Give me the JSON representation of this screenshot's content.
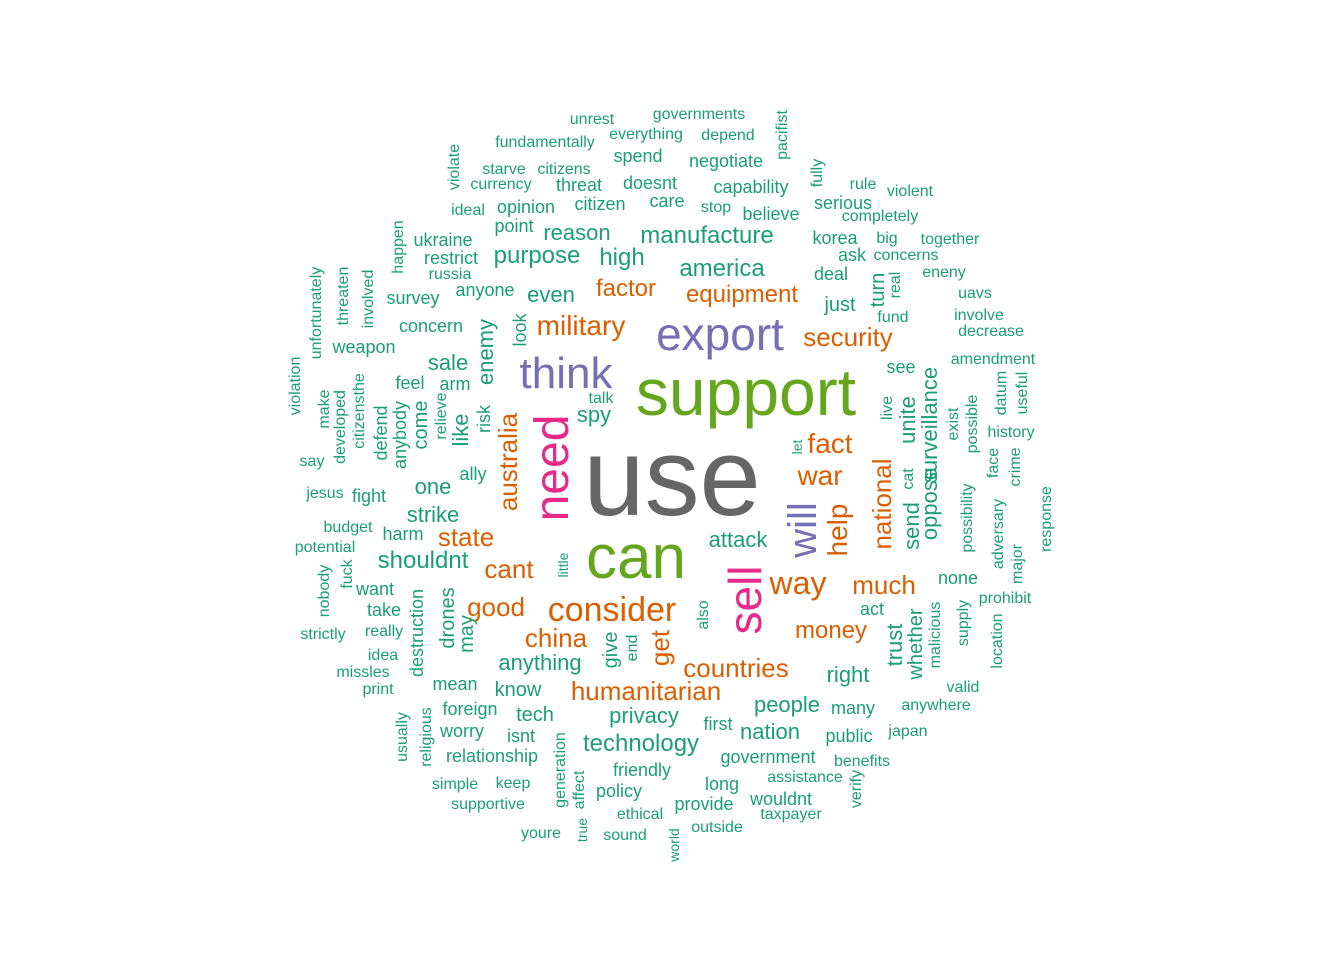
{
  "colors": {
    "gray": "#666666",
    "green": "#66a61e",
    "purple": "#7570b3",
    "pink": "#e7298a",
    "orange": "#d95f02",
    "teal": "#1b9e77"
  },
  "words": [
    {
      "text": "use",
      "color": "gray"
    },
    {
      "text": "support",
      "color": "green"
    },
    {
      "text": "can",
      "color": "green"
    },
    {
      "text": "export",
      "color": "purple"
    },
    {
      "text": "think",
      "color": "purple"
    },
    {
      "text": "need",
      "color": "pink"
    },
    {
      "text": "sell",
      "color": "pink"
    },
    {
      "text": "will",
      "color": "purple"
    },
    {
      "text": "consider",
      "color": "orange"
    },
    {
      "text": "military",
      "color": "orange"
    },
    {
      "text": "security",
      "color": "orange"
    },
    {
      "text": "equipment",
      "color": "orange"
    },
    {
      "text": "factor",
      "color": "orange"
    },
    {
      "text": "way",
      "color": "orange"
    },
    {
      "text": "war",
      "color": "orange"
    },
    {
      "text": "fact",
      "color": "orange"
    },
    {
      "text": "help",
      "color": "orange"
    },
    {
      "text": "national",
      "color": "orange"
    },
    {
      "text": "much",
      "color": "orange"
    },
    {
      "text": "money",
      "color": "orange"
    },
    {
      "text": "china",
      "color": "orange"
    },
    {
      "text": "good",
      "color": "orange"
    },
    {
      "text": "cant",
      "color": "orange"
    },
    {
      "text": "state",
      "color": "orange"
    },
    {
      "text": "australia",
      "color": "orange"
    },
    {
      "text": "humanitarian",
      "color": "orange"
    },
    {
      "text": "countries",
      "color": "orange"
    },
    {
      "text": "get",
      "color": "orange"
    },
    {
      "text": "manufacture",
      "color": "teal"
    },
    {
      "text": "america",
      "color": "teal"
    },
    {
      "text": "purpose",
      "color": "teal"
    },
    {
      "text": "high",
      "color": "teal"
    },
    {
      "text": "reason",
      "color": "teal"
    },
    {
      "text": "even",
      "color": "teal"
    },
    {
      "text": "sale",
      "color": "teal"
    },
    {
      "text": "enemy",
      "color": "teal"
    },
    {
      "text": "like",
      "color": "teal"
    },
    {
      "text": "spy",
      "color": "teal"
    },
    {
      "text": "one",
      "color": "teal"
    },
    {
      "text": "strike",
      "color": "teal"
    },
    {
      "text": "shouldnt",
      "color": "teal"
    },
    {
      "text": "attack",
      "color": "teal"
    },
    {
      "text": "anything",
      "color": "teal"
    },
    {
      "text": "privacy",
      "color": "teal"
    },
    {
      "text": "technology",
      "color": "teal"
    },
    {
      "text": "people",
      "color": "teal"
    },
    {
      "text": "nation",
      "color": "teal"
    },
    {
      "text": "right",
      "color": "teal"
    },
    {
      "text": "surveillance",
      "color": "teal"
    },
    {
      "text": "oppose",
      "color": "teal"
    },
    {
      "text": "unite",
      "color": "teal"
    },
    {
      "text": "send",
      "color": "teal"
    },
    {
      "text": "trust",
      "color": "teal"
    },
    {
      "text": "whether",
      "color": "teal"
    },
    {
      "text": "turn",
      "color": "teal"
    },
    {
      "text": "just",
      "color": "teal"
    },
    {
      "text": "drones",
      "color": "teal"
    },
    {
      "text": "give",
      "color": "teal"
    },
    {
      "text": "know",
      "color": "teal"
    },
    {
      "text": "tech",
      "color": "teal"
    },
    {
      "text": "korea",
      "color": "teal"
    },
    {
      "text": "deal",
      "color": "teal"
    },
    {
      "text": "serious",
      "color": "teal"
    },
    {
      "text": "capability",
      "color": "teal"
    },
    {
      "text": "negotiate",
      "color": "teal"
    },
    {
      "text": "threat",
      "color": "teal"
    },
    {
      "text": "doesnt",
      "color": "teal"
    },
    {
      "text": "citizen",
      "color": "teal"
    },
    {
      "text": "opinion",
      "color": "teal"
    },
    {
      "text": "spend",
      "color": "teal"
    },
    {
      "text": "unrest",
      "color": "teal"
    },
    {
      "text": "governments",
      "color": "teal"
    },
    {
      "text": "fundamentally",
      "color": "teal"
    },
    {
      "text": "everything",
      "color": "teal"
    },
    {
      "text": "depend",
      "color": "teal"
    },
    {
      "text": "pacifist",
      "color": "teal"
    },
    {
      "text": "starve",
      "color": "teal"
    },
    {
      "text": "citizens",
      "color": "teal"
    },
    {
      "text": "currency",
      "color": "teal"
    },
    {
      "text": "violate",
      "color": "teal"
    },
    {
      "text": "ideal",
      "color": "teal"
    },
    {
      "text": "care",
      "color": "teal"
    },
    {
      "text": "stop",
      "color": "teal"
    },
    {
      "text": "believe",
      "color": "teal"
    },
    {
      "text": "fully",
      "color": "teal"
    },
    {
      "text": "rule",
      "color": "teal"
    },
    {
      "text": "violent",
      "color": "teal"
    },
    {
      "text": "completely",
      "color": "teal"
    },
    {
      "text": "big",
      "color": "teal"
    },
    {
      "text": "together",
      "color": "teal"
    },
    {
      "text": "ask",
      "color": "teal"
    },
    {
      "text": "concerns",
      "color": "teal"
    },
    {
      "text": "real",
      "color": "teal"
    },
    {
      "text": "eneny",
      "color": "teal"
    },
    {
      "text": "uavs",
      "color": "teal"
    },
    {
      "text": "fund",
      "color": "teal"
    },
    {
      "text": "involve",
      "color": "teal"
    },
    {
      "text": "decrease",
      "color": "teal"
    },
    {
      "text": "amendment",
      "color": "teal"
    },
    {
      "text": "see",
      "color": "teal"
    },
    {
      "text": "point",
      "color": "teal"
    },
    {
      "text": "ukraine",
      "color": "teal"
    },
    {
      "text": "restrict",
      "color": "teal"
    },
    {
      "text": "russia",
      "color": "teal"
    },
    {
      "text": "anyone",
      "color": "teal"
    },
    {
      "text": "survey",
      "color": "teal"
    },
    {
      "text": "happen",
      "color": "teal"
    },
    {
      "text": "concern",
      "color": "teal"
    },
    {
      "text": "weapon",
      "color": "teal"
    },
    {
      "text": "unfortunately",
      "color": "teal"
    },
    {
      "text": "threaten",
      "color": "teal"
    },
    {
      "text": "involved",
      "color": "teal"
    },
    {
      "text": "look",
      "color": "teal"
    },
    {
      "text": "feel",
      "color": "teal"
    },
    {
      "text": "arm",
      "color": "teal"
    },
    {
      "text": "relieve",
      "color": "teal"
    },
    {
      "text": "risk",
      "color": "teal"
    },
    {
      "text": "come",
      "color": "teal"
    },
    {
      "text": "anybody",
      "color": "teal"
    },
    {
      "text": "defend",
      "color": "teal"
    },
    {
      "text": "citizensthe",
      "color": "teal"
    },
    {
      "text": "developed",
      "color": "teal"
    },
    {
      "text": "make",
      "color": "teal"
    },
    {
      "text": "violation",
      "color": "teal"
    },
    {
      "text": "say",
      "color": "teal"
    },
    {
      "text": "jesus",
      "color": "teal"
    },
    {
      "text": "fight",
      "color": "teal"
    },
    {
      "text": "ally",
      "color": "teal"
    },
    {
      "text": "talk",
      "color": "teal"
    },
    {
      "text": "budget",
      "color": "teal"
    },
    {
      "text": "harm",
      "color": "teal"
    },
    {
      "text": "potential",
      "color": "teal"
    },
    {
      "text": "fuck",
      "color": "teal"
    },
    {
      "text": "nobody",
      "color": "teal"
    },
    {
      "text": "want",
      "color": "teal"
    },
    {
      "text": "take",
      "color": "teal"
    },
    {
      "text": "destruction",
      "color": "teal"
    },
    {
      "text": "may",
      "color": "teal"
    },
    {
      "text": "strictly",
      "color": "teal"
    },
    {
      "text": "really",
      "color": "teal"
    },
    {
      "text": "idea",
      "color": "teal"
    },
    {
      "text": "missles",
      "color": "teal"
    },
    {
      "text": "print",
      "color": "teal"
    },
    {
      "text": "mean",
      "color": "teal"
    },
    {
      "text": "foreign",
      "color": "teal"
    },
    {
      "text": "worry",
      "color": "teal"
    },
    {
      "text": "isnt",
      "color": "teal"
    },
    {
      "text": "relationship",
      "color": "teal"
    },
    {
      "text": "religious",
      "color": "teal"
    },
    {
      "text": "usually",
      "color": "teal"
    },
    {
      "text": "simple",
      "color": "teal"
    },
    {
      "text": "keep",
      "color": "teal"
    },
    {
      "text": "supportive",
      "color": "teal"
    },
    {
      "text": "generation",
      "color": "teal"
    },
    {
      "text": "affect",
      "color": "teal"
    },
    {
      "text": "true",
      "color": "teal"
    },
    {
      "text": "youre",
      "color": "teal"
    },
    {
      "text": "sound",
      "color": "teal"
    },
    {
      "text": "ethical",
      "color": "teal"
    },
    {
      "text": "policy",
      "color": "teal"
    },
    {
      "text": "friendly",
      "color": "teal"
    },
    {
      "text": "world",
      "color": "teal"
    },
    {
      "text": "provide",
      "color": "teal"
    },
    {
      "text": "outside",
      "color": "teal"
    },
    {
      "text": "long",
      "color": "teal"
    },
    {
      "text": "first",
      "color": "teal"
    },
    {
      "text": "government",
      "color": "teal"
    },
    {
      "text": "wouldnt",
      "color": "teal"
    },
    {
      "text": "assistance",
      "color": "teal"
    },
    {
      "text": "taxpayer",
      "color": "teal"
    },
    {
      "text": "verify",
      "color": "teal"
    },
    {
      "text": "benefits",
      "color": "teal"
    },
    {
      "text": "public",
      "color": "teal"
    },
    {
      "text": "many",
      "color": "teal"
    },
    {
      "text": "japan",
      "color": "teal"
    },
    {
      "text": "anywhere",
      "color": "teal"
    },
    {
      "text": "valid",
      "color": "teal"
    },
    {
      "text": "location",
      "color": "teal"
    },
    {
      "text": "major",
      "color": "teal"
    },
    {
      "text": "prohibit",
      "color": "teal"
    },
    {
      "text": "supply",
      "color": "teal"
    },
    {
      "text": "malicious",
      "color": "teal"
    },
    {
      "text": "none",
      "color": "teal"
    },
    {
      "text": "act",
      "color": "teal"
    },
    {
      "text": "cat",
      "color": "teal"
    },
    {
      "text": "live",
      "color": "teal"
    },
    {
      "text": "possibility",
      "color": "teal"
    },
    {
      "text": "possible",
      "color": "teal"
    },
    {
      "text": "exist",
      "color": "teal"
    },
    {
      "text": "adversary",
      "color": "teal"
    },
    {
      "text": "face",
      "color": "teal"
    },
    {
      "text": "datum",
      "color": "teal"
    },
    {
      "text": "useful",
      "color": "teal"
    },
    {
      "text": "history",
      "color": "teal"
    },
    {
      "text": "crime",
      "color": "teal"
    },
    {
      "text": "response",
      "color": "teal"
    },
    {
      "text": "let",
      "color": "teal"
    },
    {
      "text": "little",
      "color": "teal"
    },
    {
      "text": "end",
      "color": "teal"
    },
    {
      "text": "also",
      "color": "teal"
    }
  ]
}
